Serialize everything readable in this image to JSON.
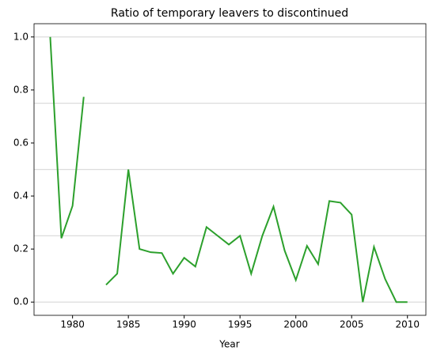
{
  "chart_data": {
    "type": "line",
    "title": "Ratio of temporary leavers to discontinued",
    "x_label": "Year",
    "x": [
      1978,
      1979,
      1980,
      1981,
      1982,
      1983,
      1984,
      1985,
      1986,
      1987,
      1988,
      1989,
      1990,
      1991,
      1992,
      1993,
      1994,
      1995,
      1996,
      1997,
      1998,
      1999,
      2000,
      2001,
      2002,
      2003,
      2004,
      2005,
      2006,
      2007,
      2008,
      2009,
      2010
    ],
    "series": [
      {
        "name": "ratio",
        "color": "#2ca02c",
        "values": [
          1.0,
          0.241,
          0.363,
          0.774,
          null,
          0.065,
          0.107,
          0.5,
          0.2,
          0.188,
          0.185,
          0.107,
          0.167,
          0.134,
          0.283,
          0.25,
          0.217,
          0.25,
          0.107,
          0.25,
          0.36,
          0.194,
          0.083,
          0.212,
          0.143,
          0.381,
          0.375,
          0.33,
          0,
          0.208,
          0.087,
          0,
          0
        ]
      }
    ],
    "xlim": [
      1976.55,
      2011.65
    ],
    "ylim": [
      -0.05,
      1.05
    ],
    "xticks": [
      1980,
      1985,
      1990,
      1995,
      2000,
      2005,
      2010
    ],
    "yticks": [
      {
        "value": 0,
        "label": "0.0"
      },
      0.2,
      0.4,
      0.6,
      0.8,
      {
        "value": 1,
        "label": "1.0"
      }
    ],
    "hlines": [
      0,
      0.25,
      0.5,
      0.75,
      1.0
    ],
    "hline_color": "#dcdcdc"
  }
}
